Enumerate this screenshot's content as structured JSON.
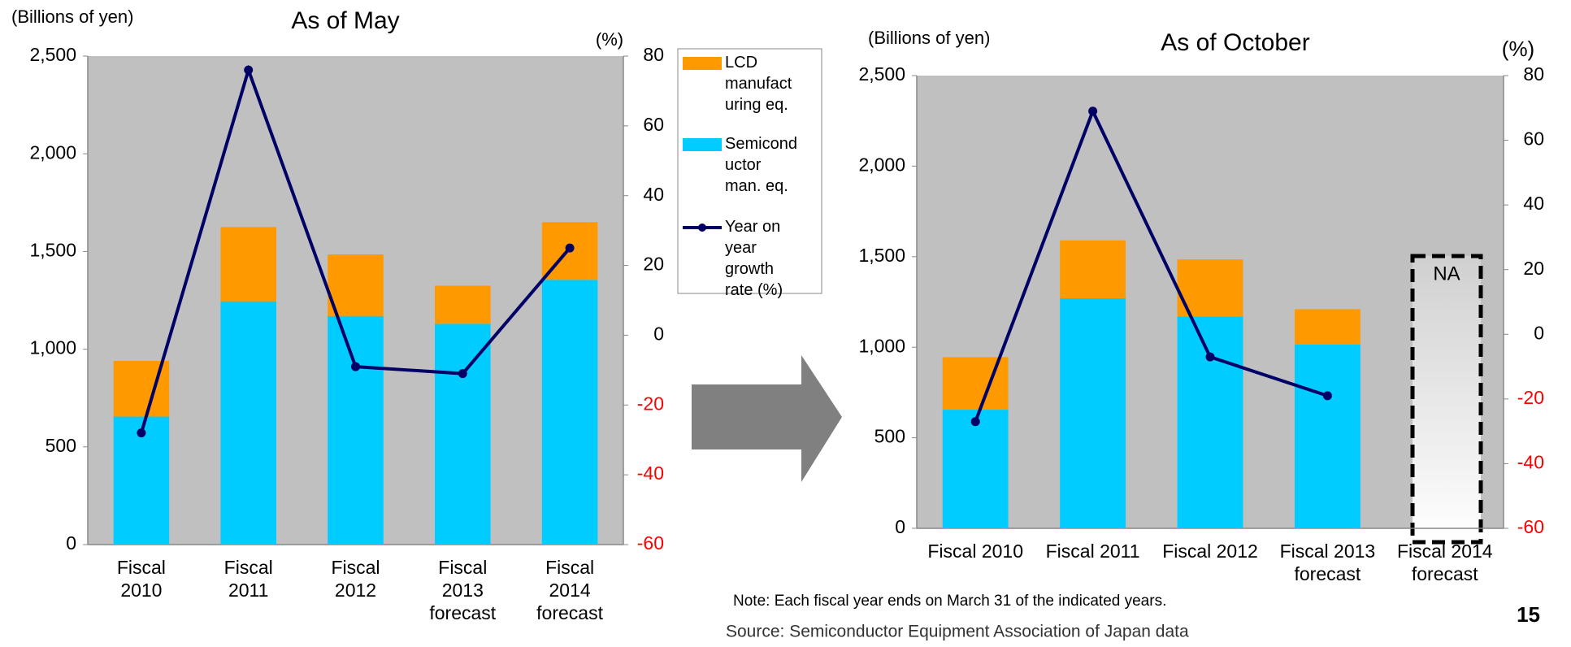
{
  "chart_data": [
    {
      "type": "bar",
      "title": "As of May",
      "y_label": "(Billions of yen)",
      "y2_label": "(%)",
      "categories": [
        "Fiscal\n2010",
        "Fiscal\n2011",
        "Fiscal\n2012",
        "Fiscal\n2013\nforecast",
        "Fiscal\n2014\nforecast"
      ],
      "series": [
        {
          "name": "LCD\nmanufact\nuring eq.",
          "color": "#ff9900",
          "values": [
            285,
            380,
            315,
            195,
            295
          ]
        },
        {
          "name": "Semicond\nuctor\nman. eq.",
          "color": "#00ccff",
          "values": [
            655,
            1245,
            1170,
            1130,
            1355
          ]
        },
        {
          "name": "Year on\nyear\ngrowth\nrate (%)",
          "color": "#000066",
          "axis": "y2",
          "type": "line",
          "values": [
            -28,
            76,
            -9,
            -11,
            25
          ]
        }
      ],
      "ylim": [
        0,
        2500
      ],
      "yticks": [
        0,
        500,
        {
          "value": 1000,
          "label": "1,000"
        },
        {
          "value": 1500,
          "label": "1,500"
        },
        {
          "value": 2000,
          "label": "2,000"
        },
        {
          "value": 2500,
          "label": "2,500"
        }
      ],
      "y2lim": [
        -60,
        80
      ],
      "y2ticks": [
        -60,
        -40,
        -20,
        0,
        20,
        40,
        60,
        80
      ],
      "legend": "right",
      "grid": false
    },
    {
      "type": "bar",
      "title": "As of October",
      "y_label": "(Billions of yen)",
      "y2_label": "(%)",
      "annotation": "NA",
      "categories": [
        "Fiscal 2010",
        "Fiscal 2011",
        "Fiscal 2012",
        "Fiscal 2013\nforecast",
        "Fiscal 2014\nforecast"
      ],
      "series": [
        {
          "name": "LCD manufacturing eq.",
          "color": "#ff9900",
          "values": [
            290,
            320,
            315,
            195,
            null
          ]
        },
        {
          "name": "Semiconductor man. eq.",
          "color": "#00ccff",
          "values": [
            655,
            1270,
            1170,
            1015,
            null
          ]
        },
        {
          "name": "Year on year growth rate (%)",
          "color": "#000066",
          "axis": "y2",
          "type": "line",
          "values": [
            -27,
            69,
            -7,
            -19,
            null
          ]
        }
      ],
      "ylim": [
        0,
        2500
      ],
      "yticks": [
        0,
        500,
        {
          "value": 1000,
          "label": "1,000"
        },
        {
          "value": 1500,
          "label": "1,500"
        },
        {
          "value": 2000,
          "label": "2,000"
        },
        {
          "value": 2500,
          "label": "2,500"
        }
      ],
      "y2lim": [
        -60,
        80
      ],
      "y2ticks": [
        -60,
        -40,
        -20,
        0,
        20,
        40,
        60,
        80
      ],
      "legend": "none",
      "grid": false
    }
  ],
  "note": "Note: Each fiscal year ends on March 31 of the indicated years.",
  "source": "Source: Semiconductor Equipment Association of Japan data",
  "page_number": "15"
}
